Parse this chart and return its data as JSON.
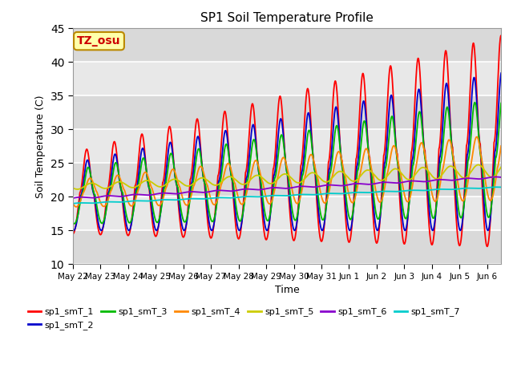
{
  "title": "SP1 Soil Temperature Profile",
  "xlabel": "Time",
  "ylabel": "Soil Temperature (C)",
  "ylim": [
    10,
    45
  ],
  "yticks": [
    10,
    15,
    20,
    25,
    30,
    35,
    40,
    45
  ],
  "series_names": [
    "sp1_smT_1",
    "sp1_smT_2",
    "sp1_smT_3",
    "sp1_smT_4",
    "sp1_smT_5",
    "sp1_smT_6",
    "sp1_smT_7"
  ],
  "series_colors": [
    "#FF0000",
    "#0000CC",
    "#00BB00",
    "#FF8800",
    "#CCCC00",
    "#8800CC",
    "#00CCCC"
  ],
  "annotation_text": "TZ_osu",
  "annotation_bg": "#FFFFAA",
  "annotation_border": "#BB8800",
  "annotation_color": "#CC0000",
  "bg_color": "#E8E8E8",
  "bg_color2": "#D0D0D0",
  "grid_color": "#FFFFFF",
  "n_days": 16,
  "day_labels": [
    "May 22",
    "May 23",
    "May 24",
    "May 25",
    "May 26",
    "May 27",
    "May 28",
    "May 29",
    "May 30",
    "May 31",
    "Jun 1",
    "Jun 2",
    "Jun 3",
    "Jun 4",
    "Jun 5",
    "Jun 6"
  ]
}
